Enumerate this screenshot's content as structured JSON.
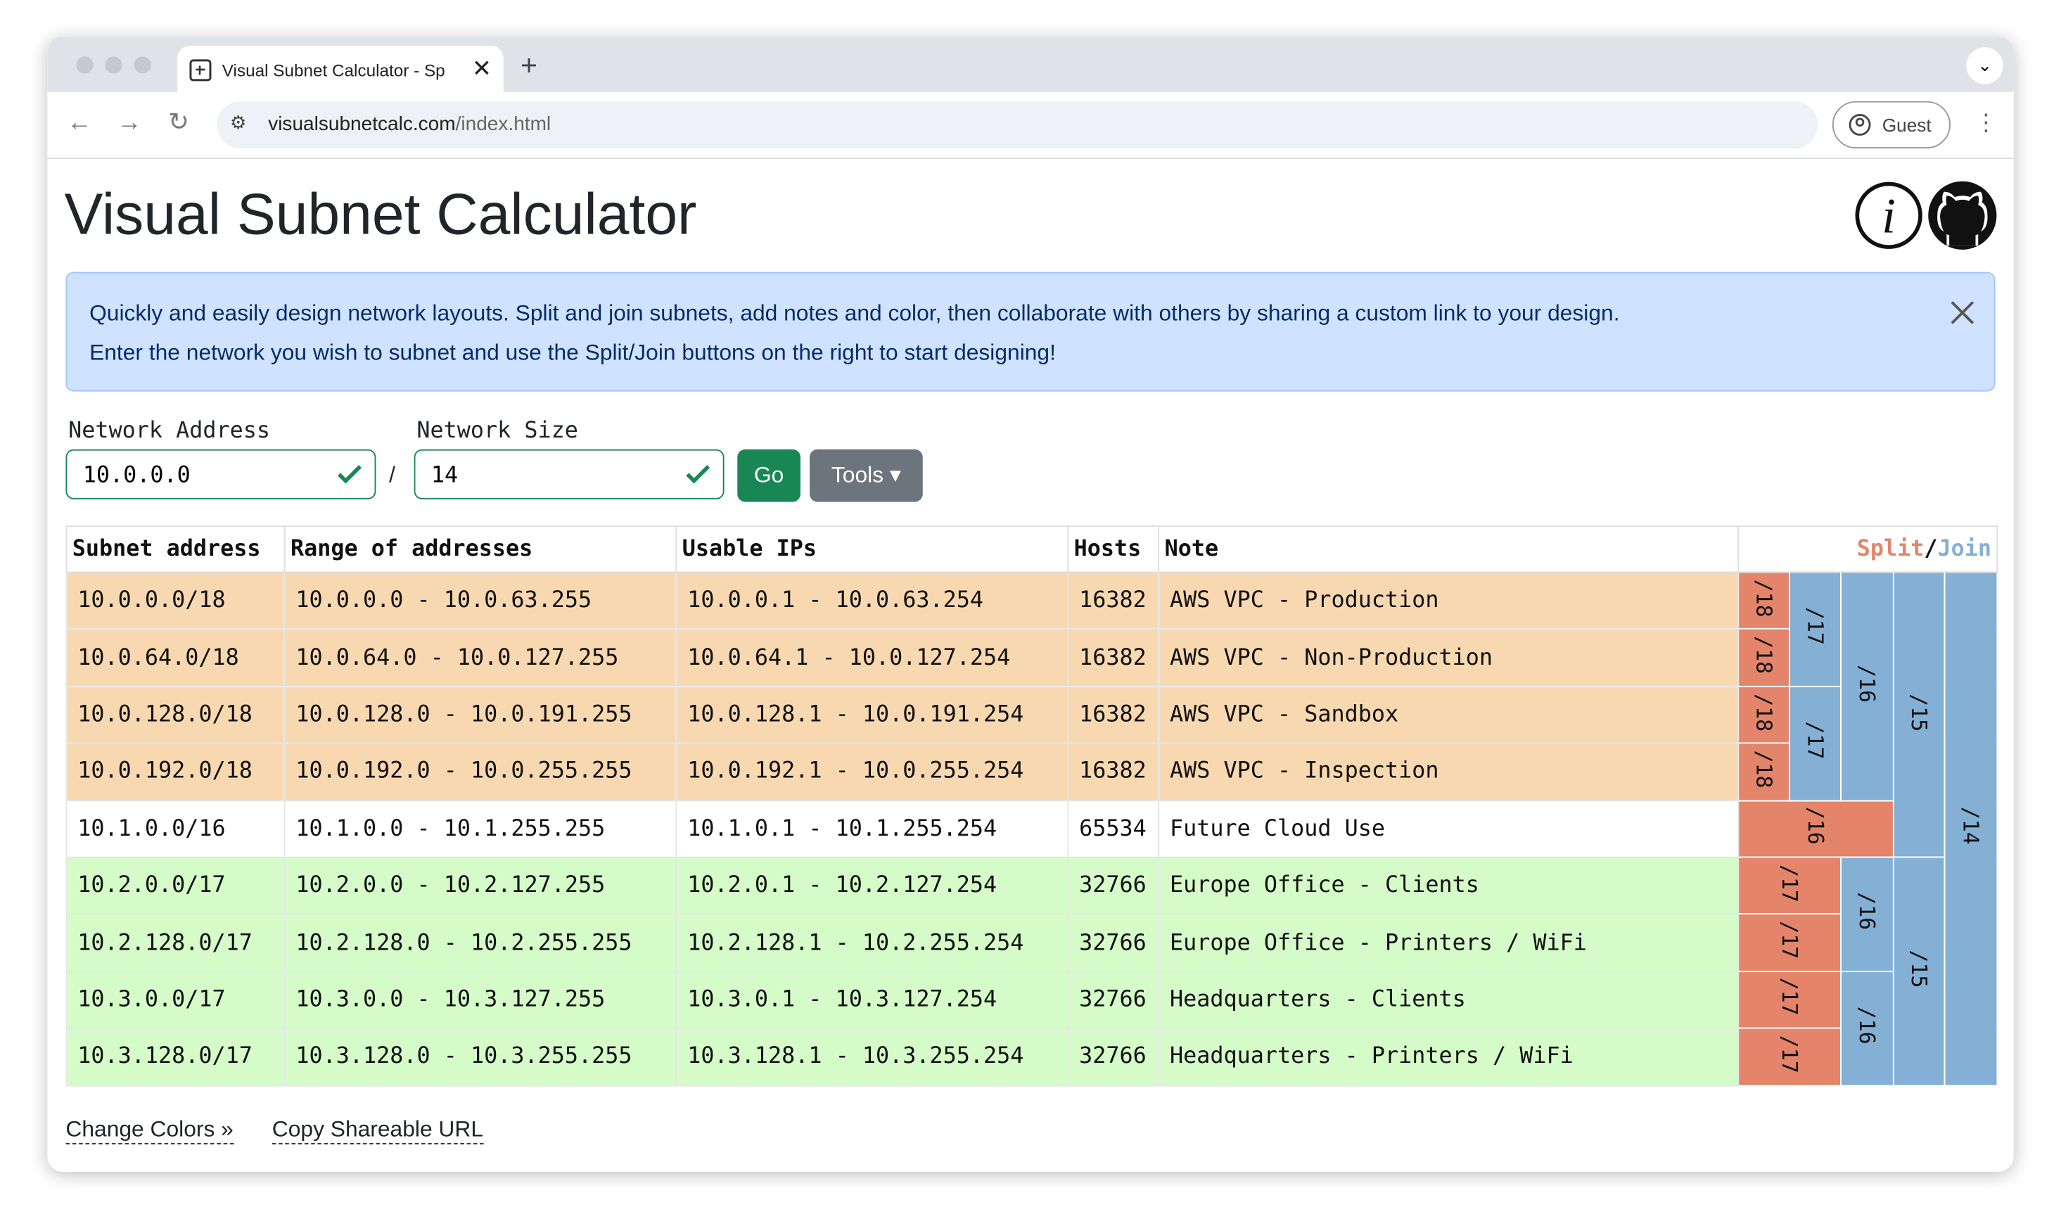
{
  "browser": {
    "tab_title": "Visual Subnet Calculator - Sp",
    "url_host": "visualsubnetcalc.com",
    "url_path": "/index.html",
    "profile": "Guest"
  },
  "header": {
    "title": "Visual Subnet Calculator"
  },
  "alert": {
    "line1": "Quickly and easily design network layouts. Split and join subnets, add notes and color, then collaborate with others by sharing a custom link to your design.",
    "line2": "Enter the network you wish to subnet and use the Split/Join buttons on the right to start designing!"
  },
  "form": {
    "address_label": "Network Address",
    "address": "10.0.0.0",
    "separator": "/",
    "size_label": "Network Size",
    "size": "14",
    "go": "Go",
    "tools": "Tools"
  },
  "table": {
    "headers": [
      "Subnet address",
      "Range of addresses",
      "Usable IPs",
      "Hosts",
      "Note"
    ],
    "split": "Split",
    "separator": "/",
    "join": "Join",
    "split_color": "#e4856b",
    "join_color": "#84b0d5",
    "row_colors": [
      "#f8d8b0",
      "#f8d8b0",
      "#f8d8b0",
      "#f8d8b0",
      "#ffffff",
      "#d5fbc8",
      "#d5fbc8",
      "#d5fbc8",
      "#d5fbc8"
    ],
    "rows": [
      [
        "10.0.0.0/18",
        "10.0.0.0 - 10.0.63.255",
        "10.0.0.1 - 10.0.63.254",
        "16382",
        "AWS VPC - Production"
      ],
      [
        "10.0.64.0/18",
        "10.0.64.0 - 10.0.127.255",
        "10.0.64.1 - 10.0.127.254",
        "16382",
        "AWS VPC - Non-Production"
      ],
      [
        "10.0.128.0/18",
        "10.0.128.0 - 10.0.191.255",
        "10.0.128.1 - 10.0.191.254",
        "16382",
        "AWS VPC - Sandbox"
      ],
      [
        "10.0.192.0/18",
        "10.0.192.0 - 10.0.255.255",
        "10.0.192.1 - 10.0.255.254",
        "16382",
        "AWS VPC - Inspection"
      ],
      [
        "10.1.0.0/16",
        "10.1.0.0 - 10.1.255.255",
        "10.1.0.1 - 10.1.255.254",
        "65534",
        "Future Cloud Use"
      ],
      [
        "10.2.0.0/17",
        "10.2.0.0 - 10.2.127.255",
        "10.2.0.1 - 10.2.127.254",
        "32766",
        "Europe Office - Clients"
      ],
      [
        "10.2.128.0/17",
        "10.2.128.0 - 10.2.255.255",
        "10.2.128.1 - 10.2.255.254",
        "32766",
        "Europe Office - Printers / WiFi"
      ],
      [
        "10.3.0.0/17",
        "10.3.0.0 - 10.3.127.255",
        "10.3.0.1 - 10.3.127.254",
        "32766",
        "Headquarters - Clients"
      ],
      [
        "10.3.128.0/17",
        "10.3.128.0 - 10.3.255.255",
        "10.3.128.1 - 10.3.255.254",
        "32766",
        "Headquarters - Printers / WiFi"
      ]
    ],
    "split_labels": [
      "/18",
      "/18",
      "/18",
      "/18",
      "/16",
      "/17",
      "/17",
      "/17",
      "/17"
    ],
    "join_labels": [
      "/17",
      "/16",
      "/15",
      "/14",
      "/17",
      "/16",
      "/15",
      "/16"
    ]
  },
  "footer": {
    "change_colors": "Change Colors »",
    "copy_url": "Copy Shareable URL"
  }
}
